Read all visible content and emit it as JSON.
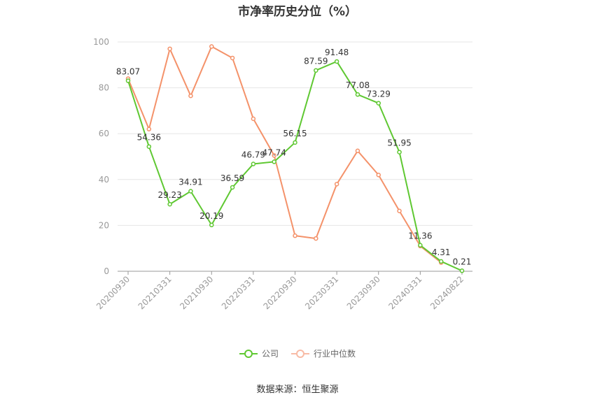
{
  "chart_data": {
    "type": "line",
    "title": "市净率历史分位（%）",
    "x": [
      "20200930",
      "20201231",
      "20210331",
      "20210630",
      "20210930",
      "20211231",
      "20220331",
      "20220630",
      "20220930",
      "20221231",
      "20230331",
      "20230630",
      "20230930",
      "20231231",
      "20240331",
      "20240630",
      "20240822"
    ],
    "x_tick_labels": [
      "20200930",
      "20210331",
      "20210930",
      "20220331",
      "20220930",
      "20230331",
      "20230930",
      "20240331",
      "20240822"
    ],
    "y_ticks": [
      "0",
      "20",
      "40",
      "60",
      "80",
      "100"
    ],
    "ylim": [
      0,
      100
    ],
    "grid": true,
    "legend_position": "bottom",
    "series": [
      {
        "name": "公司",
        "color": "#5fc832",
        "values": [
          83.07,
          54.36,
          29.23,
          34.91,
          20.19,
          36.59,
          46.79,
          47.74,
          56.15,
          87.59,
          91.48,
          77.08,
          73.29,
          51.95,
          11.36,
          4.31,
          0.21
        ],
        "labels": [
          "83.07",
          "54.36",
          "29.23",
          "34.91",
          "20.19",
          "36.59",
          "46.79",
          "47.74",
          "56.15",
          "87.59",
          "91.48",
          "77.08",
          "73.29",
          "51.95",
          "11.36",
          "4.31",
          "0.21"
        ]
      },
      {
        "name": "行业中位数",
        "color": "#f4926a",
        "values": [
          84,
          62,
          97,
          76.5,
          98,
          93,
          66.5,
          50.5,
          15.5,
          14.3,
          38,
          52.5,
          42,
          26.3,
          11,
          3.8,
          null
        ]
      }
    ]
  },
  "legend": {
    "company": "公司",
    "industry": "行业中位数"
  },
  "source": "数据来源：恒生聚源"
}
